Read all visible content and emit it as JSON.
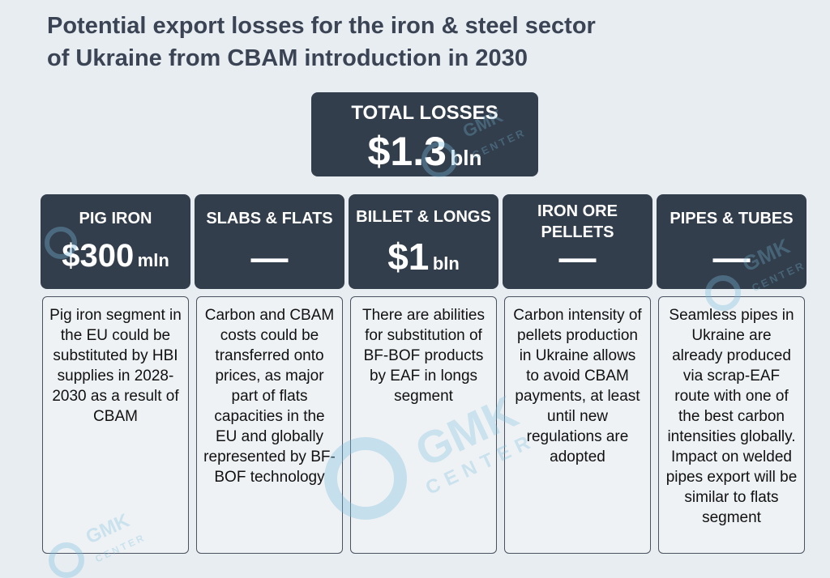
{
  "title": {
    "line1": "Potential export losses for the iron & steel sector",
    "line2": "of Ukraine from CBAM introduction in 2030"
  },
  "total": {
    "label": "TOTAL LOSSES",
    "value": "$1.3",
    "unit": "bln"
  },
  "columns": [
    {
      "label": "PIG IRON",
      "value": "$300",
      "unit": "mln",
      "dash": "",
      "text": "Pig iron segment in the EU could be substituted by HBI supplies in 2028-2030 as a result of CBAM"
    },
    {
      "label": "SLABS & FLATS",
      "value": "",
      "unit": "",
      "dash": "—",
      "text": "Carbon and CBAM costs could be transferred onto prices, as major part of flats capacities in the EU and globally represented by BF-BOF technology"
    },
    {
      "label": "BILLET & LONGS",
      "value": "$1",
      "unit": "bln",
      "dash": "",
      "text": "There are abilities for substitution of BF-BOF products by EAF in longs segment"
    },
    {
      "label": "IRON ORE PELLETS",
      "value": "",
      "unit": "",
      "dash": "—",
      "text": "Carbon intensity of pellets production in Ukraine allows to avoid CBAM payments, at least until new regulations are adopted"
    },
    {
      "label": "PIPES & TUBES",
      "value": "",
      "unit": "",
      "dash": "—",
      "text": "Seamless pipes in Ukraine are already produced via scrap-EAF route with one of the best carbon intensities globally. Impact on welded pipes export will be similar to flats segment"
    }
  ],
  "watermark": {
    "brand": "GMK",
    "sub": "CENTER"
  },
  "colors": {
    "header_bg": "#333e4d",
    "page_bg": "#e8edf1",
    "title": "#3b4454"
  }
}
